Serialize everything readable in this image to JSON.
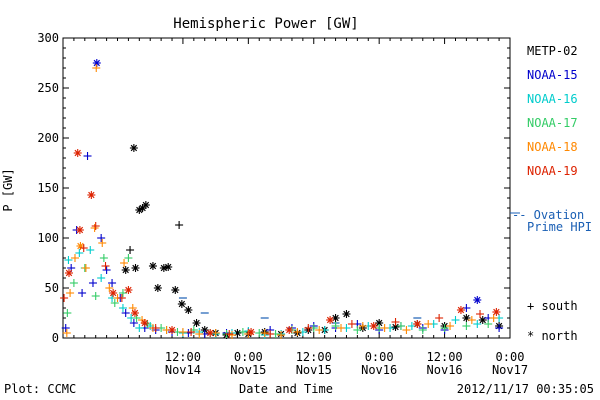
{
  "chart_data": {
    "type": "scatter",
    "title": "Hemispheric Power [GW]",
    "xlabel": "Date and Time",
    "ylabel": "P [GW]",
    "ylim": [
      0,
      300
    ],
    "yticks": [
      "0",
      "50",
      "100",
      "150",
      "200",
      "250",
      "300"
    ],
    "xlim_hours": [
      -10,
      72
    ],
    "x_ticks": [
      {
        "hour": 12,
        "time": "12:00",
        "day": "Nov14"
      },
      {
        "hour": 24,
        "time": "0:00",
        "day": "Nov15"
      },
      {
        "hour": 36,
        "time": "12:00",
        "day": "Nov15"
      },
      {
        "hour": 48,
        "time": "0:00",
        "day": "Nov16"
      },
      {
        "hour": 60,
        "time": "12:00",
        "day": "Nov16"
      },
      {
        "hour": 72,
        "time": "0:00",
        "day": "Nov17"
      }
    ],
    "grid": false,
    "legend_position": "right",
    "series": [
      {
        "name": "METP-02",
        "color": "#000000",
        "points": [
          [
            1.5,
            68,
            "*"
          ],
          [
            2.3,
            88,
            "+"
          ],
          [
            3.0,
            190,
            "*"
          ],
          [
            3.3,
            70,
            "*"
          ],
          [
            4.0,
            128,
            "*"
          ],
          [
            4.6,
            130,
            "*"
          ],
          [
            5.2,
            133,
            "*"
          ],
          [
            6.5,
            72,
            "*"
          ],
          [
            7.4,
            50,
            "*"
          ],
          [
            8.5,
            70,
            "*"
          ],
          [
            9.3,
            71,
            "*"
          ],
          [
            10.6,
            48,
            "*"
          ],
          [
            11.3,
            113,
            "+"
          ],
          [
            11.8,
            34,
            "*"
          ],
          [
            13.0,
            28,
            "*"
          ],
          [
            14.5,
            15,
            "*"
          ],
          [
            16.0,
            8,
            "*"
          ],
          [
            18.0,
            5,
            "*"
          ],
          [
            20.0,
            3,
            "*"
          ],
          [
            22.0,
            5,
            "*"
          ],
          [
            24.0,
            4,
            "*"
          ],
          [
            27.0,
            6,
            "*"
          ],
          [
            30.0,
            4,
            "*"
          ],
          [
            33.0,
            5,
            "*"
          ],
          [
            35.0,
            8,
            "*"
          ],
          [
            38.0,
            8,
            "*"
          ],
          [
            40.0,
            20,
            "*"
          ],
          [
            42.0,
            24,
            "*"
          ],
          [
            45.0,
            10,
            "*"
          ],
          [
            48.0,
            15,
            "*"
          ],
          [
            51.0,
            11,
            "*"
          ],
          [
            55.0,
            14,
            "*"
          ],
          [
            60.0,
            12,
            "*"
          ],
          [
            64.0,
            20,
            "*"
          ],
          [
            67.0,
            18,
            "*"
          ],
          [
            70.0,
            12,
            "*"
          ]
        ]
      },
      {
        "name": "NOAA-15",
        "color": "#0000cc",
        "points": [
          [
            -9.5,
            10,
            "+"
          ],
          [
            -8.5,
            70,
            "+"
          ],
          [
            -7.5,
            108,
            "+"
          ],
          [
            -6.5,
            45,
            "+"
          ],
          [
            -5.5,
            182,
            "+"
          ],
          [
            -4.5,
            55,
            "+"
          ],
          [
            -3.8,
            275,
            "*"
          ],
          [
            -3.0,
            100,
            "+"
          ],
          [
            -2.0,
            68,
            "+"
          ],
          [
            -1.0,
            55,
            "+"
          ],
          [
            0.5,
            40,
            "+"
          ],
          [
            1.5,
            25,
            "+"
          ],
          [
            3.0,
            15,
            "+"
          ],
          [
            5.0,
            10,
            "+"
          ],
          [
            7.0,
            8,
            "+"
          ],
          [
            10.0,
            6,
            "+"
          ],
          [
            13.0,
            5,
            "+"
          ],
          [
            16.0,
            4,
            "+"
          ],
          [
            20.0,
            5,
            "+"
          ],
          [
            24.0,
            6,
            "+"
          ],
          [
            28.0,
            8,
            "+"
          ],
          [
            32.0,
            10,
            "+"
          ],
          [
            36.0,
            12,
            "+"
          ],
          [
            40.0,
            10,
            "+"
          ],
          [
            44.0,
            14,
            "+"
          ],
          [
            48.0,
            8,
            "+"
          ],
          [
            52.0,
            12,
            "+"
          ],
          [
            56.0,
            10,
            "+"
          ],
          [
            60.0,
            8,
            "+"
          ],
          [
            64.0,
            30,
            "+"
          ],
          [
            66.0,
            38,
            "*"
          ],
          [
            68.0,
            20,
            "+"
          ],
          [
            70.0,
            10,
            "+"
          ]
        ]
      },
      {
        "name": "NOAA-16",
        "color": "#00cccc",
        "points": [
          [
            -9.0,
            78,
            "+"
          ],
          [
            -7.0,
            85,
            "+"
          ],
          [
            -5.0,
            88,
            "+"
          ],
          [
            -3.0,
            60,
            "+"
          ],
          [
            -1.0,
            40,
            "+"
          ],
          [
            1.0,
            30,
            "+"
          ],
          [
            2.5,
            20,
            "+"
          ],
          [
            4.0,
            10,
            "+"
          ],
          [
            6.0,
            12,
            "+"
          ],
          [
            9.0,
            8,
            "+"
          ],
          [
            12.0,
            5,
            "+"
          ],
          [
            15.0,
            6,
            "+"
          ],
          [
            18.0,
            4,
            "+"
          ],
          [
            21.0,
            5,
            "+"
          ],
          [
            24.0,
            7,
            "+"
          ],
          [
            27.0,
            3,
            "+"
          ],
          [
            30.0,
            4,
            "+"
          ],
          [
            34.0,
            6,
            "+"
          ],
          [
            38.0,
            8,
            "+"
          ],
          [
            42.0,
            10,
            "+"
          ],
          [
            46.0,
            12,
            "+"
          ],
          [
            50.0,
            10,
            "+"
          ],
          [
            54.0,
            12,
            "+"
          ],
          [
            58.0,
            14,
            "+"
          ],
          [
            62.0,
            18,
            "+"
          ],
          [
            66.0,
            14,
            "+"
          ],
          [
            70.0,
            20,
            "+"
          ]
        ]
      },
      {
        "name": "NOAA-17",
        "color": "#33cc66",
        "points": [
          [
            -9.2,
            25,
            "+"
          ],
          [
            -8.0,
            55,
            "+"
          ],
          [
            -6.0,
            70,
            "+"
          ],
          [
            -4.0,
            42,
            "+"
          ],
          [
            -2.5,
            80,
            "+"
          ],
          [
            -0.5,
            35,
            "+"
          ],
          [
            1.0,
            45,
            "+"
          ],
          [
            2.0,
            80,
            "+"
          ],
          [
            3.5,
            20,
            "+"
          ],
          [
            5.5,
            14,
            "+"
          ],
          [
            8.0,
            10,
            "+"
          ],
          [
            11.0,
            6,
            "+"
          ],
          [
            14.0,
            8,
            "+"
          ],
          [
            17.0,
            5,
            "+"
          ],
          [
            20.0,
            4,
            "+"
          ],
          [
            23.0,
            6,
            "+"
          ],
          [
            26.0,
            5,
            "+"
          ],
          [
            29.0,
            4,
            "+"
          ],
          [
            32.0,
            8,
            "+"
          ],
          [
            36.0,
            10,
            "+"
          ],
          [
            40.0,
            12,
            "+"
          ],
          [
            44.0,
            8,
            "+"
          ],
          [
            48.0,
            10,
            "+"
          ],
          [
            52.0,
            12,
            "+"
          ],
          [
            56.0,
            8,
            "+"
          ],
          [
            60.0,
            10,
            "+"
          ],
          [
            64.0,
            12,
            "+"
          ],
          [
            68.0,
            14,
            "+"
          ]
        ]
      },
      {
        "name": "NOAA-18",
        "color": "#ff8800",
        "points": [
          [
            -9.3,
            5,
            "+"
          ],
          [
            -8.7,
            45,
            "+"
          ],
          [
            -7.8,
            80,
            "+"
          ],
          [
            -6.8,
            92,
            "*"
          ],
          [
            -5.8,
            70,
            "+"
          ],
          [
            -4.2,
            110,
            "+"
          ],
          [
            -3.9,
            270,
            "+"
          ],
          [
            -2.8,
            95,
            "+"
          ],
          [
            -1.5,
            50,
            "+"
          ],
          [
            0.0,
            40,
            "+"
          ],
          [
            1.2,
            75,
            "+"
          ],
          [
            2.8,
            30,
            "+"
          ],
          [
            4.5,
            18,
            "+"
          ],
          [
            6.5,
            10,
            "+"
          ],
          [
            9.0,
            8,
            "+"
          ],
          [
            12.0,
            6,
            "+"
          ],
          [
            15.0,
            4,
            "+"
          ],
          [
            18.0,
            5,
            "+"
          ],
          [
            21.0,
            3,
            "+"
          ],
          [
            24.0,
            4,
            "+"
          ],
          [
            27.0,
            5,
            "+"
          ],
          [
            30.0,
            3,
            "+"
          ],
          [
            33.0,
            6,
            "+"
          ],
          [
            37.0,
            8,
            "+"
          ],
          [
            41.0,
            10,
            "+"
          ],
          [
            45.0,
            12,
            "+"
          ],
          [
            49.0,
            10,
            "+"
          ],
          [
            53.0,
            8,
            "+"
          ],
          [
            57.0,
            14,
            "+"
          ],
          [
            61.0,
            12,
            "+"
          ],
          [
            65.0,
            18,
            "+"
          ],
          [
            69.0,
            20,
            "+"
          ]
        ]
      },
      {
        "name": "NOAA-19",
        "color": "#dd2200",
        "points": [
          [
            -9.8,
            40,
            "+"
          ],
          [
            -8.9,
            65,
            "*"
          ],
          [
            -7.3,
            185,
            "*"
          ],
          [
            -6.9,
            108,
            "*"
          ],
          [
            -6.2,
            90,
            "+"
          ],
          [
            -4.8,
            143,
            "*"
          ],
          [
            -4.0,
            112,
            "+"
          ],
          [
            -2.2,
            72,
            "+"
          ],
          [
            -0.8,
            45,
            "*"
          ],
          [
            0.8,
            40,
            "+"
          ],
          [
            2.0,
            48,
            "*"
          ],
          [
            3.2,
            25,
            "*"
          ],
          [
            5.0,
            15,
            "*"
          ],
          [
            7.0,
            10,
            "+"
          ],
          [
            10.0,
            8,
            "*"
          ],
          [
            13.5,
            6,
            "+"
          ],
          [
            17.0,
            5,
            "*"
          ],
          [
            20.5,
            4,
            "+"
          ],
          [
            24.5,
            6,
            "*"
          ],
          [
            28.0,
            4,
            "+"
          ],
          [
            31.5,
            8,
            "*"
          ],
          [
            35.0,
            10,
            "+"
          ],
          [
            39.0,
            18,
            "*"
          ],
          [
            43.0,
            14,
            "+"
          ],
          [
            47.0,
            12,
            "*"
          ],
          [
            51.0,
            16,
            "+"
          ],
          [
            55.0,
            14,
            "*"
          ],
          [
            59.0,
            20,
            "+"
          ],
          [
            63.0,
            28,
            "*"
          ],
          [
            66.5,
            24,
            "+"
          ],
          [
            69.5,
            26,
            "*"
          ]
        ]
      }
    ],
    "side_note": [
      "-- Ovation",
      "Prime HPI"
    ],
    "side_note_value": 125,
    "side_note_color": "#1a5fb4",
    "hpi_marks": [
      [
        12,
        40
      ],
      [
        16,
        25
      ],
      [
        27,
        20
      ],
      [
        40,
        15
      ],
      [
        55,
        20
      ]
    ],
    "symbol_key": [
      {
        "symbol": "+",
        "label": "south"
      },
      {
        "symbol": "*",
        "label": "north"
      }
    ]
  },
  "footer": {
    "left": "Plot: CCMC",
    "center": "Date and Time",
    "right": "2012/11/17 00:35:05"
  }
}
